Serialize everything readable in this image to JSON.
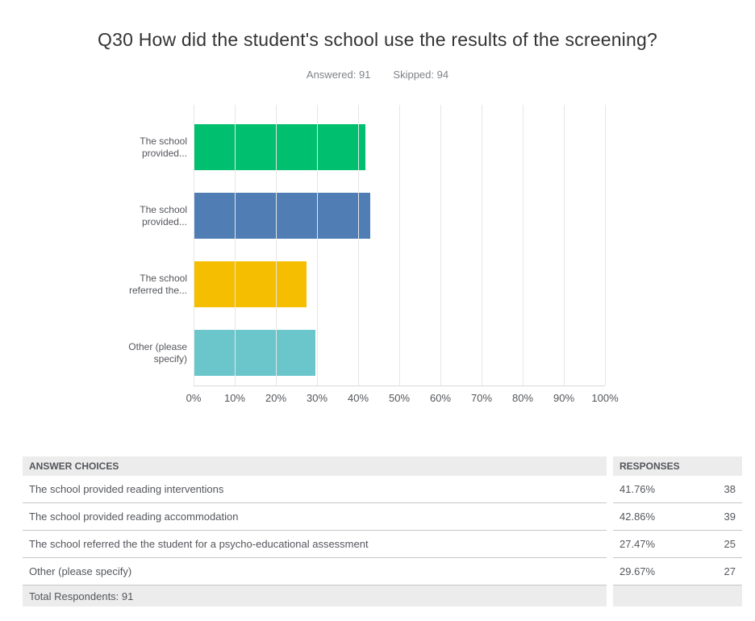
{
  "header": {
    "title": "Q30 How did the student's school use the results of the screening?",
    "answered": "Answered: 91",
    "skipped": "Skipped: 94"
  },
  "chart_data": {
    "type": "bar",
    "orientation": "horizontal",
    "title": "",
    "xlabel": "",
    "ylabel": "",
    "xlim": [
      0,
      100
    ],
    "grid": true,
    "legend": false,
    "categories": [
      "The school provided reading interventions",
      "The school provided reading accommodation",
      "The school referred the the student for a psycho-educational assessment",
      "Other (please specify)"
    ],
    "values": [
      41.76,
      42.86,
      27.47,
      29.67
    ],
    "counts": [
      38,
      39,
      25,
      27
    ],
    "colors": [
      "#00BF6F",
      "#4F7DB4",
      "#F6BE00",
      "#6BC6CC"
    ],
    "bar_labels": [
      [
        "The school",
        "provided..."
      ],
      [
        "The school",
        "provided..."
      ],
      [
        "The school",
        "referred the..."
      ],
      [
        "Other (please",
        "specify)"
      ]
    ],
    "xtick_labels": [
      "0%",
      "10%",
      "20%",
      "30%",
      "40%",
      "50%",
      "60%",
      "70%",
      "80%",
      "90%",
      "100%"
    ]
  },
  "table": {
    "headers": [
      "ANSWER CHOICES",
      "RESPONSES"
    ],
    "rows": [
      {
        "answer": "The school provided reading interventions",
        "percent": "41.76%",
        "count": "38"
      },
      {
        "answer": "The school provided reading accommodation",
        "percent": "42.86%",
        "count": "39"
      },
      {
        "answer": "The school referred the the student for a psycho-educational assessment",
        "percent": "27.47%",
        "count": "25"
      },
      {
        "answer": "Other (please specify)",
        "percent": "29.67%",
        "count": "27"
      }
    ],
    "footer": "Total Respondents: 91"
  }
}
